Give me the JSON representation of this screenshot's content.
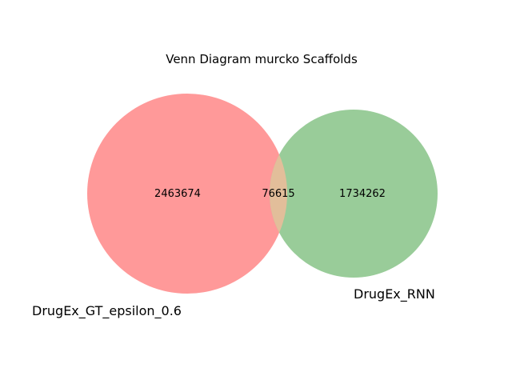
{
  "chart_data": {
    "type": "venn",
    "title": "Venn Diagram murcko Scaffolds",
    "sets": [
      {
        "name": "DrugEx_GT_epsilon_0.6",
        "only_count": "2463674",
        "color": "#ff9999"
      },
      {
        "name": "DrugEx_RNN",
        "only_count": "1734262",
        "color": "#99cc99"
      }
    ],
    "intersection": {
      "count": "76615",
      "color": "#e2be9a"
    }
  }
}
